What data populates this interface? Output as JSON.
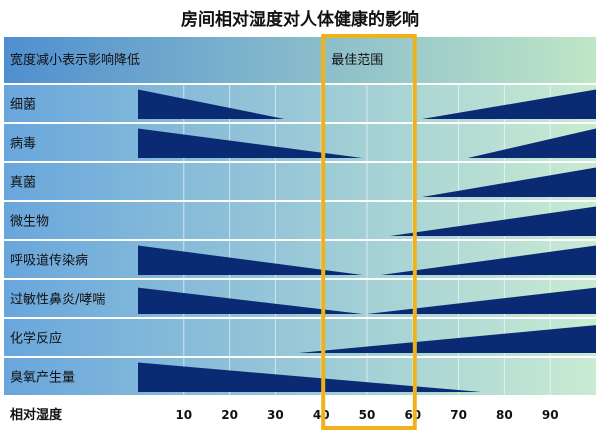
{
  "chart_data": {
    "type": "area",
    "title": "房间相对湿度对人体健康的影响",
    "subtitle": "宽度减小表示影响降低",
    "optimal_label": "最佳范围",
    "optimal_range": [
      40,
      60
    ],
    "xlabel": "相对湿度",
    "xlim": [
      0,
      100
    ],
    "x_ticks": [
      "10",
      "20",
      "30",
      "40",
      "50",
      "60",
      "70",
      "80",
      "90"
    ],
    "grid": true,
    "colors": {
      "band_dark": "#0b2a74",
      "row_blue": "#69a6dc",
      "row_green": "#c9ebd2",
      "header_blue": "#4f8fd0",
      "header_green": "#bfe6c6",
      "highlight": "#f0b21a",
      "title": "#111111"
    },
    "series": [
      {
        "name": "细菌",
        "left": {
          "from": 0,
          "to": 32,
          "w0": 0.95
        },
        "right": {
          "from": 62,
          "to": 100,
          "w1": 0.95
        }
      },
      {
        "name": "病毒",
        "left": {
          "from": 0,
          "to": 49,
          "w0": 0.95
        },
        "right": {
          "from": 72,
          "to": 100,
          "w1": 0.95
        }
      },
      {
        "name": "真菌",
        "left": null,
        "right": {
          "from": 62,
          "to": 100,
          "w1": 0.95
        }
      },
      {
        "name": "微生物",
        "left": null,
        "right": {
          "from": 55,
          "to": 100,
          "w1": 0.95
        }
      },
      {
        "name": "呼吸道传染病",
        "left": {
          "from": 0,
          "to": 49,
          "w0": 0.95
        },
        "right": {
          "from": 53,
          "to": 100,
          "w1": 0.95
        }
      },
      {
        "name": "过敏性鼻炎/哮喘",
        "left": {
          "from": 0,
          "to": 49,
          "w0": 0.85
        },
        "right": {
          "from": 50,
          "to": 100,
          "w1": 0.85
        }
      },
      {
        "name": "化学反应",
        "left": null,
        "right": {
          "from": 35,
          "to": 100,
          "w1": 0.9
        }
      },
      {
        "name": "臭氧产生量",
        "left": {
          "from": 0,
          "to": 75,
          "w0": 0.95
        },
        "right": null
      }
    ]
  }
}
